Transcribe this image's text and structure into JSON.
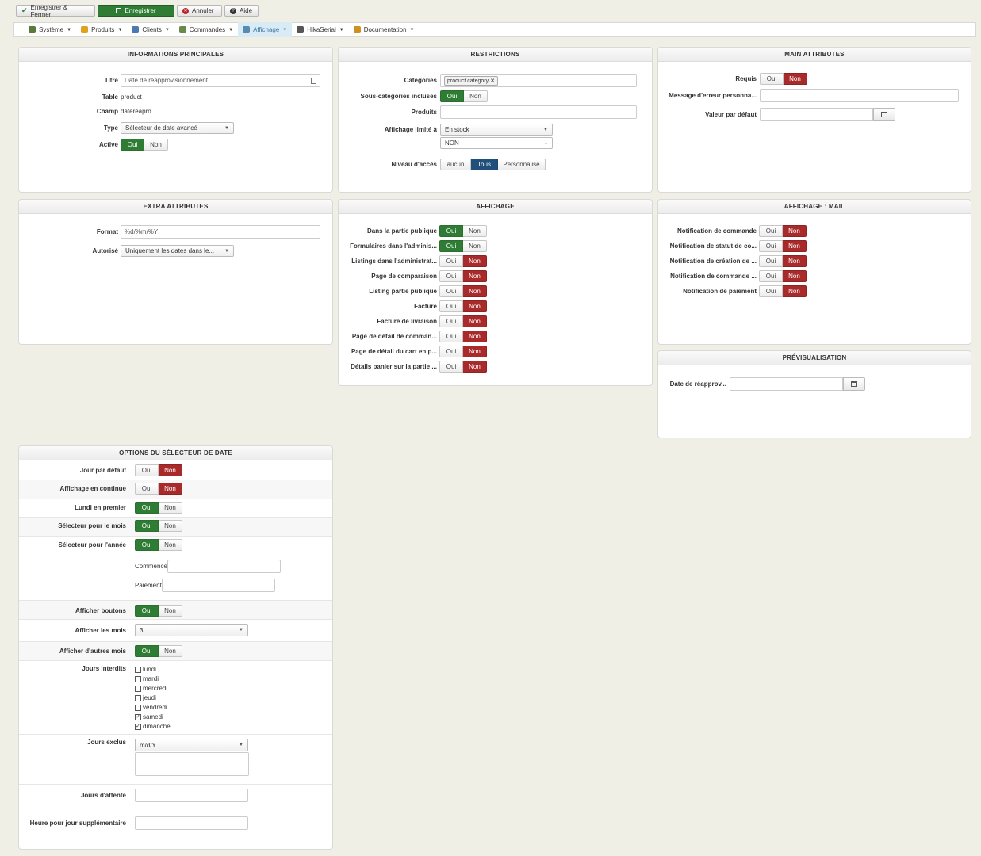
{
  "toolbar": {
    "save_close": "Enregistrer & Fermer",
    "save": "Enregistrer",
    "cancel": "Annuler",
    "help": "Aide"
  },
  "menu": [
    {
      "label": "Système",
      "icon_color": "#5a7a3a"
    },
    {
      "label": "Produits",
      "icon_color": "#e0a020"
    },
    {
      "label": "Clients",
      "icon_color": "#4a7ab0"
    },
    {
      "label": "Commandes",
      "icon_color": "#6a8a4a"
    },
    {
      "label": "Affichage",
      "icon_color": "#5a8ab0"
    },
    {
      "label": "HikaSerial",
      "icon_color": "#555555"
    },
    {
      "label": "Documentation",
      "icon_color": "#d09020"
    }
  ],
  "panels": {
    "main_info": {
      "title": "INFORMATIONS PRINCIPALES",
      "title_label": "Titre",
      "title_value": "Date de réapprovisionnement",
      "table_label": "Table",
      "table_value": "product",
      "field_label": "Champ",
      "field_value": "datereapro",
      "type_label": "Type",
      "type_value": "Sélecteur de date avancé",
      "active_label": "Active"
    },
    "restrictions": {
      "title": "RESTRICTIONS",
      "categories_label": "Catégories",
      "category_tag": "product category",
      "subcat_label": "Sous-catégories incluses",
      "products_label": "Produits",
      "display_limit_label": "Affichage limité à",
      "display_limit_value": "En stock",
      "display_limit_value2": "NON",
      "access_label": "Niveau d'accès",
      "access_options": [
        "aucun",
        "Tous",
        "Personnalisé"
      ]
    },
    "main_attributes": {
      "title": "MAIN ATTRIBUTES",
      "required_label": "Requis",
      "error_msg_label": "Message d'erreur personna...",
      "default_label": "Valeur par défaut"
    },
    "extra_attributes": {
      "title": "EXTRA ATTRIBUTES",
      "format_label": "Format",
      "format_value": "%d/%m/%Y",
      "allowed_label": "Autorisé",
      "allowed_value": "Uniquement les dates dans le..."
    },
    "display": {
      "title": "AFFICHAGE",
      "rows": [
        {
          "label": "Dans la partie publique",
          "state": "yes"
        },
        {
          "label": "Formulaires dans l'adminis...",
          "state": "yes"
        },
        {
          "label": "Listings dans l'administrat...",
          "state": "no"
        },
        {
          "label": "Page de comparaison",
          "state": "no"
        },
        {
          "label": "Listing partie publique",
          "state": "no"
        },
        {
          "label": "Facture",
          "state": "no"
        },
        {
          "label": "Facture de livraison",
          "state": "no"
        },
        {
          "label": "Page de détail de comman...",
          "state": "no"
        },
        {
          "label": "Page de détail du cart en p...",
          "state": "no"
        },
        {
          "label": "Détails panier sur la partie ...",
          "state": "no"
        }
      ]
    },
    "display_mail": {
      "title": "AFFICHAGE : MAIL",
      "rows": [
        {
          "label": "Notification de commande",
          "state": "no"
        },
        {
          "label": "Notification de statut de co...",
          "state": "no"
        },
        {
          "label": "Notification de création de ...",
          "state": "no"
        },
        {
          "label": "Notification de commande ...",
          "state": "no"
        },
        {
          "label": "Notification de paiement",
          "state": "no"
        }
      ]
    },
    "preview": {
      "title": "PRÉVISUALISATION",
      "date_label": "Date de réapprov..."
    },
    "date_options": {
      "title": "OPTIONS DU SÉLECTEUR DE DATE",
      "default_day_label": "Jour par défaut",
      "inline_label": "Affichage en continue",
      "monday_first_label": "Lundi en premier",
      "month_picker_label": "Sélecteur pour le mois",
      "year_picker_label": "Sélecteur pour l'année",
      "start_label": "Commence",
      "end_label": "Paiement",
      "show_buttons_label": "Afficher boutons",
      "show_months_label": "Afficher les mois",
      "show_months_value": "3",
      "other_months_label": "Afficher d'autres mois",
      "forbidden_days_label": "Jours interdits",
      "days": [
        {
          "label": "lundi",
          "checked": false
        },
        {
          "label": "mardi",
          "checked": false
        },
        {
          "label": "mercredi",
          "checked": false
        },
        {
          "label": "jeudi",
          "checked": false
        },
        {
          "label": "vendredi",
          "checked": false
        },
        {
          "label": "samedi",
          "checked": true
        },
        {
          "label": "dimanche",
          "checked": true
        }
      ],
      "excluded_days_label": "Jours exclus",
      "excluded_format": "m/d/Y",
      "waiting_days_label": "Jours d'attente",
      "extra_hour_label": "Heure pour jour supplémentaire"
    }
  },
  "common": {
    "yes": "Oui",
    "no": "Non"
  }
}
